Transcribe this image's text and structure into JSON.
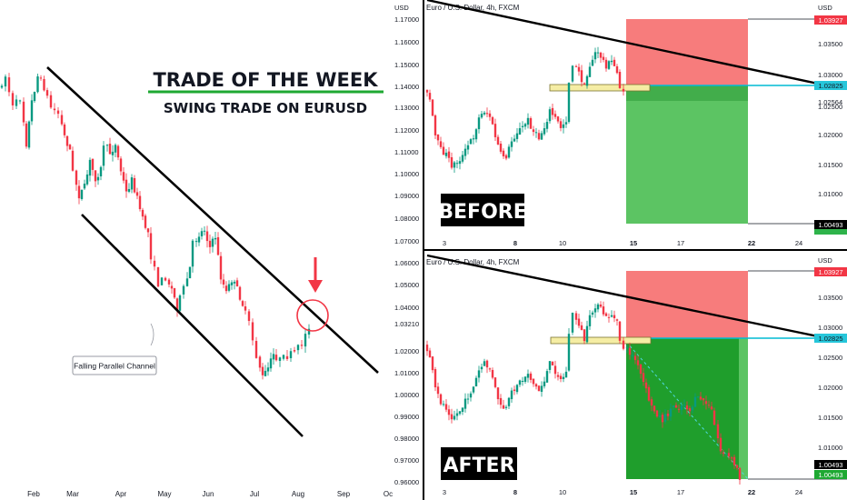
{
  "headline": {
    "title": "TRADE OF THE WEEK",
    "subtitle": "SWING TRADE ON EURUSD"
  },
  "colors": {
    "up": "#089981",
    "down": "#f23645",
    "accent_green": "#1ea832",
    "loss_zone": "#f77c7c",
    "profit_zone_before": "#5cc463",
    "profit_zone_after": "#1f9e2c",
    "entry_box": "#f5eda4",
    "arrow": "#f23645"
  },
  "chart_data": [
    {
      "type": "candlestick",
      "title": "",
      "symbol_label": "",
      "x_tick_labels": [
        "Feb",
        "Mar",
        "Apr",
        "May",
        "Jun",
        "Jul",
        "Aug",
        "Sep",
        "Oc"
      ],
      "y_axis": "hidden",
      "annotations": {
        "channel_label": "Falling Parallel Channel",
        "pattern": "falling parallel channel",
        "marker": "down arrow and circle at upper channel line (Aug)"
      }
    },
    {
      "type": "candlestick",
      "name": "before",
      "symbol_label": "Euro / U.S. Dollar, 4h, FXCM",
      "panel_label": "BEFORE",
      "x_tick_labels": [
        "3",
        "8",
        "10",
        "15",
        "17",
        "22",
        "24"
      ],
      "left_axis": {
        "unit": "USD",
        "ticks": [
          "1.17000",
          "1.16000",
          "1.15000",
          "1.14000",
          "1.13000",
          "1.12000",
          "1.11000",
          "1.10000",
          "1.09000",
          "1.08000",
          "1.07000"
        ]
      },
      "right_axis": {
        "unit": "USD",
        "ticks": [
          "1.03500",
          "1.03000",
          "1.02500",
          "1.02000",
          "1.01500",
          "1.01000"
        ],
        "tags": {
          "stop": "1.03927",
          "entry": "1.02825",
          "near_entry": "1.02564",
          "target": "1.00493"
        }
      },
      "trade": {
        "direction": "short",
        "stop": 1.03927,
        "entry": 1.02825,
        "target": 1.00493,
        "status": "pending"
      }
    },
    {
      "type": "candlestick",
      "name": "after",
      "symbol_label": "Euro / U.S. Dollar, 4h, FXCM",
      "panel_label": "AFTER",
      "x_tick_labels": [
        "3",
        "8",
        "10",
        "15",
        "17",
        "22",
        "24"
      ],
      "left_axis": {
        "unit": "USD",
        "ticks": [
          "1.06000",
          "1.05000",
          "1.04000",
          "1.03210",
          "1.02000",
          "1.01000",
          "1.00000",
          "0.99000",
          "0.98000",
          "0.97000",
          "0.96000"
        ]
      },
      "right_axis": {
        "unit": "USD",
        "ticks": [
          "1.03500",
          "1.03000",
          "1.02500",
          "1.02000",
          "1.01500",
          "1.01000"
        ],
        "tags": {
          "stop": "1.03927",
          "entry": "1.02825",
          "target": "1.00493",
          "target_hit": "1.00493"
        }
      },
      "trade": {
        "direction": "short",
        "stop": 1.03927,
        "entry": 1.02825,
        "target": 1.00493,
        "status": "target reached"
      }
    }
  ]
}
